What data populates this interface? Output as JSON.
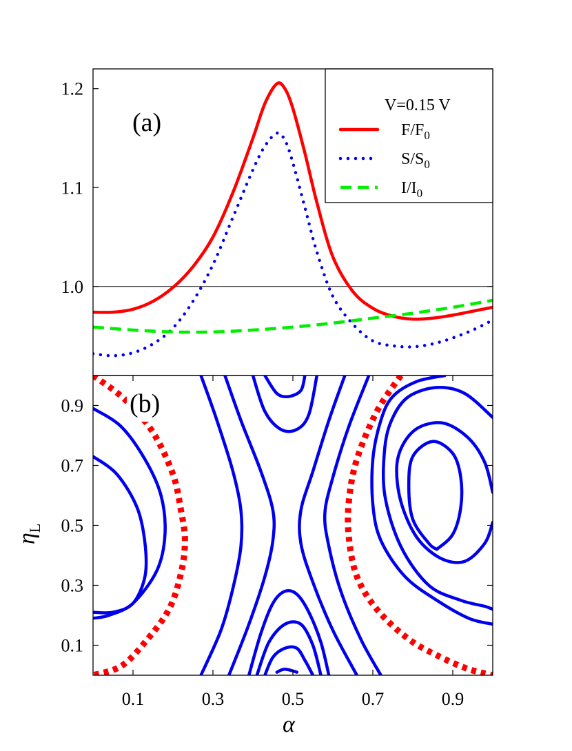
{
  "chart_data": [
    {
      "panel": "(a)",
      "type": "line",
      "xlim": [
        0.0,
        1.0
      ],
      "ylim": [
        0.91,
        1.22
      ],
      "yticks": [
        "1.0",
        "1.1",
        "1.2"
      ],
      "reference_line_y": 1.0,
      "legend": {
        "placement": "top-right",
        "title": "V=0.15 V"
      },
      "series": [
        {
          "name": "F/F",
          "name_sub": "0",
          "color": "#ff0000",
          "style": "solid",
          "x": [
            0.0,
            0.05,
            0.1,
            0.15,
            0.2,
            0.25,
            0.3,
            0.35,
            0.4,
            0.43,
            0.46,
            0.48,
            0.5,
            0.53,
            0.56,
            0.6,
            0.65,
            0.7,
            0.75,
            0.8,
            0.85,
            0.9,
            0.95,
            1.0
          ],
          "y": [
            0.974,
            0.974,
            0.977,
            0.985,
            0.999,
            1.02,
            1.05,
            1.095,
            1.15,
            1.185,
            1.205,
            1.2,
            1.18,
            1.135,
            1.085,
            1.03,
            0.995,
            0.978,
            0.97,
            0.967,
            0.968,
            0.971,
            0.975,
            0.979
          ]
        },
        {
          "name": "S/S",
          "name_sub": "0",
          "color": "#0000ee",
          "style": "dotted",
          "x": [
            0.0,
            0.05,
            0.1,
            0.15,
            0.2,
            0.25,
            0.3,
            0.35,
            0.4,
            0.43,
            0.46,
            0.48,
            0.5,
            0.53,
            0.56,
            0.6,
            0.65,
            0.7,
            0.75,
            0.8,
            0.85,
            0.9,
            0.95,
            1.0
          ],
          "y": [
            0.932,
            0.93,
            0.933,
            0.942,
            0.958,
            0.985,
            1.022,
            1.07,
            1.118,
            1.142,
            1.155,
            1.148,
            1.125,
            1.08,
            1.035,
            0.99,
            0.962,
            0.945,
            0.94,
            0.939,
            0.942,
            0.948,
            0.956,
            0.966
          ]
        },
        {
          "name": "I/I",
          "name_sub": "0",
          "color": "#00ee00",
          "style": "dashed",
          "x": [
            0.0,
            0.1,
            0.2,
            0.3,
            0.4,
            0.5,
            0.6,
            0.7,
            0.8,
            0.9,
            1.0
          ],
          "y": [
            0.959,
            0.956,
            0.954,
            0.954,
            0.956,
            0.959,
            0.963,
            0.968,
            0.973,
            0.979,
            0.986
          ]
        }
      ]
    },
    {
      "panel": "(b)",
      "type": "line",
      "xlabel": "α",
      "ylabel": "η",
      "ylabel_sub": "L",
      "xlim": [
        0.0,
        1.0
      ],
      "ylim": [
        0.0,
        1.0
      ],
      "xticks": [
        "0.1",
        "0.3",
        "0.5",
        "0.7",
        "0.9"
      ],
      "yticks": [
        "0.1",
        "0.3",
        "0.5",
        "0.7",
        "0.9"
      ],
      "series": [
        {
          "color": "#ff0000",
          "style": "dotted",
          "x": [
            0.0,
            0.08,
            0.15,
            0.2,
            0.22,
            0.23,
            0.22,
            0.19,
            0.13,
            0.07,
            0.0
          ],
          "y": [
            1.0,
            0.92,
            0.81,
            0.67,
            0.55,
            0.45,
            0.34,
            0.22,
            0.11,
            0.03,
            0.0
          ]
        },
        {
          "color": "#ff0000",
          "style": "dotted",
          "x": [
            0.77,
            0.71,
            0.66,
            0.64,
            0.64,
            0.66,
            0.71,
            0.79,
            0.87,
            0.94,
            1.0
          ],
          "y": [
            1.0,
            0.88,
            0.72,
            0.58,
            0.46,
            0.33,
            0.22,
            0.12,
            0.06,
            0.02,
            0.0
          ]
        },
        {
          "color": "#0000ee",
          "style": "solid",
          "x": [
            0.0,
            0.07,
            0.13,
            0.17,
            0.18,
            0.16,
            0.1,
            0.04,
            0.0
          ],
          "y": [
            0.89,
            0.83,
            0.72,
            0.6,
            0.47,
            0.35,
            0.24,
            0.2,
            0.19
          ]
        },
        {
          "color": "#0000ee",
          "style": "solid",
          "x": [
            0.0,
            0.06,
            0.11,
            0.13,
            0.13,
            0.1,
            0.05,
            0.0
          ],
          "y": [
            0.73,
            0.67,
            0.56,
            0.44,
            0.33,
            0.24,
            0.21,
            0.21
          ]
        },
        {
          "color": "#0000ee",
          "style": "solid",
          "x": [
            0.27,
            0.31,
            0.35,
            0.37,
            0.37,
            0.35,
            0.32,
            0.27
          ],
          "y": [
            1.0,
            0.85,
            0.68,
            0.55,
            0.43,
            0.29,
            0.15,
            0.0
          ]
        },
        {
          "color": "#0000ee",
          "style": "solid",
          "x": [
            0.33,
            0.37,
            0.42,
            0.45,
            0.45,
            0.43,
            0.39,
            0.34
          ],
          "y": [
            1.0,
            0.85,
            0.68,
            0.55,
            0.45,
            0.33,
            0.17,
            0.0
          ]
        },
        {
          "color": "#0000ee",
          "style": "solid",
          "x": [
            0.63,
            0.59,
            0.55,
            0.52,
            0.52,
            0.55,
            0.6,
            0.66
          ],
          "y": [
            1.0,
            0.85,
            0.68,
            0.55,
            0.44,
            0.31,
            0.15,
            0.0
          ]
        },
        {
          "color": "#0000ee",
          "style": "solid",
          "x": [
            0.69,
            0.64,
            0.6,
            0.58,
            0.59,
            0.62,
            0.67,
            0.72
          ],
          "y": [
            1.0,
            0.83,
            0.66,
            0.54,
            0.43,
            0.28,
            0.12,
            0.0
          ]
        },
        {
          "color": "#0000ee",
          "style": "solid",
          "x": [
            0.4,
            0.43,
            0.47,
            0.51,
            0.54,
            0.56
          ],
          "y": [
            1.0,
            0.88,
            0.82,
            0.82,
            0.87,
            1.0
          ]
        },
        {
          "color": "#0000ee",
          "style": "solid",
          "x": [
            0.43,
            0.46,
            0.49,
            0.52,
            0.53
          ],
          "y": [
            1.0,
            0.94,
            0.93,
            0.95,
            1.0
          ]
        },
        {
          "color": "#0000ee",
          "style": "solid",
          "x": [
            0.39,
            0.42,
            0.45,
            0.48,
            0.51,
            0.54,
            0.57,
            0.59
          ],
          "y": [
            0.0,
            0.14,
            0.24,
            0.28,
            0.27,
            0.21,
            0.11,
            0.0
          ]
        },
        {
          "color": "#0000ee",
          "style": "solid",
          "x": [
            0.41,
            0.44,
            0.48,
            0.52,
            0.55,
            0.57
          ],
          "y": [
            0.0,
            0.11,
            0.17,
            0.17,
            0.1,
            0.0
          ]
        },
        {
          "color": "#0000ee",
          "style": "solid",
          "x": [
            0.43,
            0.45,
            0.48,
            0.51,
            0.53,
            0.55
          ],
          "y": [
            0.0,
            0.06,
            0.09,
            0.09,
            0.05,
            0.0
          ]
        },
        {
          "color": "#0000ee",
          "style": "solid",
          "x": [
            0.46,
            0.48,
            0.51
          ],
          "y": [
            0.01,
            0.02,
            0.01
          ]
        },
        {
          "color": "#0000ee",
          "style": "solid",
          "x": [
            0.88,
            0.81,
            0.75,
            0.72,
            0.7,
            0.7,
            0.72,
            0.78,
            0.86,
            0.94,
            1.0
          ],
          "y": [
            1.0,
            0.98,
            0.93,
            0.85,
            0.72,
            0.57,
            0.45,
            0.33,
            0.25,
            0.19,
            0.17
          ]
        },
        {
          "color": "#0000ee",
          "style": "solid",
          "x": [
            1.0,
            0.93,
            0.86,
            0.79,
            0.75,
            0.73,
            0.73,
            0.77,
            0.84,
            0.92,
            0.98,
            1.0
          ],
          "y": [
            0.86,
            0.94,
            0.96,
            0.93,
            0.86,
            0.76,
            0.6,
            0.43,
            0.3,
            0.25,
            0.23,
            0.22
          ]
        },
        {
          "color": "#0000ee",
          "style": "solid",
          "x": [
            1.0,
            0.98,
            0.94,
            0.88,
            0.82,
            0.78,
            0.76,
            0.77,
            0.81,
            0.87,
            0.93,
            0.98,
            1.0
          ],
          "y": [
            0.61,
            0.71,
            0.79,
            0.84,
            0.83,
            0.78,
            0.7,
            0.58,
            0.46,
            0.39,
            0.38,
            0.44,
            0.51
          ]
        },
        {
          "color": "#0000ee",
          "style": "solid",
          "x": [
            0.86,
            0.9,
            0.92,
            0.92,
            0.9,
            0.85,
            0.8,
            0.79,
            0.8,
            0.84,
            0.86
          ],
          "y": [
            0.42,
            0.47,
            0.56,
            0.66,
            0.74,
            0.78,
            0.73,
            0.63,
            0.52,
            0.44,
            0.42
          ]
        }
      ]
    }
  ]
}
